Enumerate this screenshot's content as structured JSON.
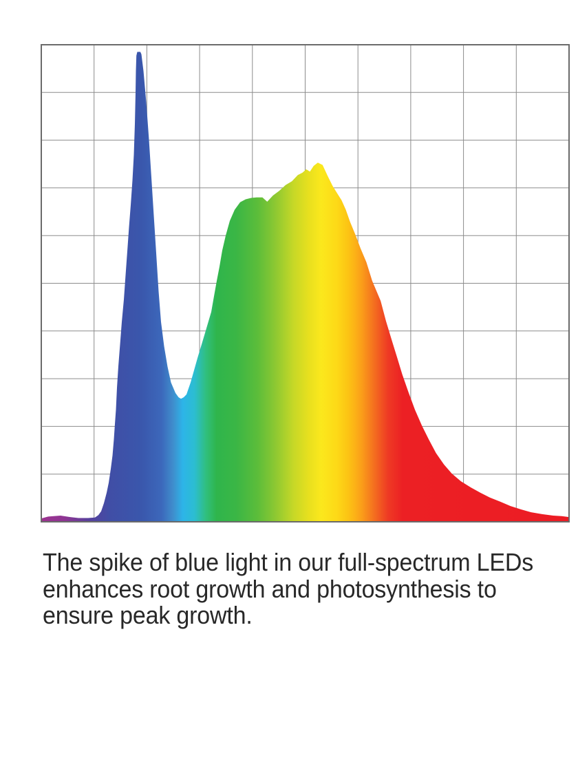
{
  "caption": {
    "lines": [
      "The spike of blue light in our full-spectrum LEDs",
      "enhances root growth and photosynthesis to",
      "ensure peak growth."
    ],
    "text_color": "#282828"
  },
  "chart": {
    "background": "#ffffff",
    "grid_color": "#8b8b8b",
    "border_color": "#6a6a6a",
    "columns": 10,
    "rows": 10
  },
  "chart_data": {
    "type": "area",
    "title": "",
    "xlabel": "",
    "ylabel": "",
    "grid": true,
    "legend": "none",
    "axis_tick_labels": "none",
    "x_range_percent": [
      0,
      100
    ],
    "y_range_percent": [
      0,
      100
    ],
    "series": [
      {
        "name": "full-spectrum LED relative intensity",
        "x_percent": [
          0,
          1.3,
          3.65,
          5.48,
          7.04,
          8.87,
          10.17,
          10.82,
          11.34,
          11.86,
          12.39,
          12.78,
          13.17,
          13.49,
          13.76,
          13.95,
          14.15,
          14.34,
          14.6,
          14.93,
          15.25,
          15.64,
          15.97,
          16.3,
          16.62,
          16.95,
          17.28,
          17.54,
          17.73,
          17.86,
          17.93,
          18.02,
          18.19,
          18.77,
          18.97,
          19.36,
          19.88,
          20.4,
          20.86,
          21.32,
          21.77,
          22.23,
          22.69,
          23.27,
          23.92,
          24.58,
          25.42,
          26.01,
          26.47,
          26.99,
          27.51,
          28.29,
          29.6,
          30.9,
          32.2,
          32.73,
          33.25,
          33.77,
          34.29,
          34.94,
          35.72,
          36.64,
          37.68,
          38.72,
          39.77,
          40.81,
          41.9,
          42.8,
          43.9,
          45.1,
          46.3,
          47.5,
          48.6,
          49.5,
          50.2,
          50.9,
          51.6,
          52.4,
          53.3,
          54.3,
          55.2,
          56.1,
          56.9,
          57.7,
          58.5,
          59.5,
          60.5,
          61.6,
          62.7,
          64.3,
          65.3,
          66.4,
          67.4,
          68.4,
          69.6,
          70.8,
          72.1,
          73.4,
          74.8,
          76.3,
          77.8,
          79.5,
          81.4,
          83.2,
          85.0,
          87.0,
          88.9,
          90.9,
          92.8,
          94.9,
          97.0,
          98.6,
          100
        ],
        "intensity_percent": [
          0.7,
          1.1,
          1.3,
          1.0,
          0.8,
          0.8,
          0.9,
          1.4,
          2.2,
          3.9,
          6.1,
          8.2,
          11.1,
          13.9,
          17.3,
          20.5,
          23.5,
          28.1,
          32.6,
          37.2,
          41.9,
          46.6,
          51.7,
          56.7,
          61.8,
          66.4,
          71.6,
          76.9,
          83.4,
          89.9,
          94.5,
          97.7,
          98.5,
          98.5,
          98.0,
          94.5,
          88.0,
          80.1,
          72.2,
          64.2,
          56.3,
          48.3,
          41.9,
          36.8,
          32.5,
          29.2,
          27.0,
          26.1,
          25.8,
          26.1,
          26.7,
          29.2,
          34.3,
          39.1,
          44.0,
          47.3,
          50.5,
          53.5,
          56.9,
          60.0,
          63.1,
          65.4,
          67.0,
          67.6,
          67.9,
          68.0,
          68.0,
          67.1,
          68.4,
          69.4,
          70.6,
          71.4,
          72.7,
          73.2,
          73.9,
          73.4,
          74.6,
          75.3,
          74.8,
          72.4,
          70.4,
          68.8,
          67.4,
          65.4,
          62.9,
          60.2,
          57.3,
          54.4,
          50.5,
          46.3,
          42.1,
          38.1,
          34.5,
          30.9,
          27.1,
          23.5,
          20.2,
          17.3,
          14.4,
          12.0,
          10.1,
          8.5,
          7.2,
          6.1,
          5.1,
          4.2,
          3.3,
          2.6,
          2.0,
          1.6,
          1.3,
          1.2,
          1.0
        ]
      }
    ],
    "gradient_stops": [
      {
        "pos": 0.0,
        "color": "#9d3390"
      },
      {
        "pos": 0.045,
        "color": "#8e3593"
      },
      {
        "pos": 0.09,
        "color": "#57409c"
      },
      {
        "pos": 0.13,
        "color": "#404ea6"
      },
      {
        "pos": 0.19,
        "color": "#3a57ac"
      },
      {
        "pos": 0.228,
        "color": "#3c68bb"
      },
      {
        "pos": 0.25,
        "color": "#3f8ecd"
      },
      {
        "pos": 0.268,
        "color": "#2db4e8"
      },
      {
        "pos": 0.29,
        "color": "#2cbdd2"
      },
      {
        "pos": 0.312,
        "color": "#30bf7e"
      },
      {
        "pos": 0.332,
        "color": "#2fb54c"
      },
      {
        "pos": 0.37,
        "color": "#3bb645"
      },
      {
        "pos": 0.41,
        "color": "#5cbd3a"
      },
      {
        "pos": 0.443,
        "color": "#8cc832"
      },
      {
        "pos": 0.478,
        "color": "#c6d827"
      },
      {
        "pos": 0.508,
        "color": "#e9e01e"
      },
      {
        "pos": 0.53,
        "color": "#fbe81d"
      },
      {
        "pos": 0.56,
        "color": "#fdd917"
      },
      {
        "pos": 0.582,
        "color": "#fcc314"
      },
      {
        "pos": 0.606,
        "color": "#fba019"
      },
      {
        "pos": 0.63,
        "color": "#f4701f"
      },
      {
        "pos": 0.657,
        "color": "#ee3a24"
      },
      {
        "pos": 0.685,
        "color": "#ec2024"
      },
      {
        "pos": 1.0,
        "color": "#ec1c24"
      }
    ]
  }
}
